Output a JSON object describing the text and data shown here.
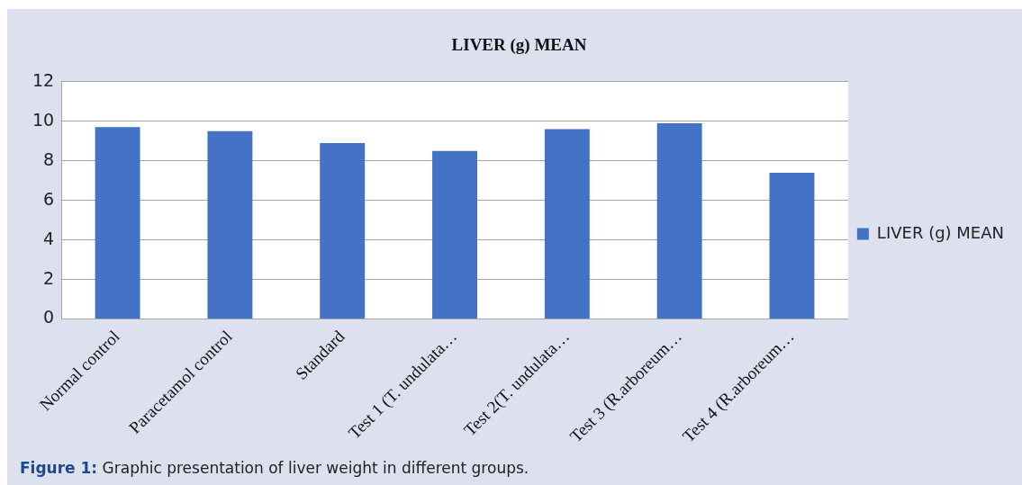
{
  "chart_data": {
    "type": "bar",
    "title": "LIVER (g) MEAN",
    "categories": [
      "Normal control",
      "Paracetamol control",
      "Standard",
      "Test 1 (T. undulata…",
      "Test 2(T. undulata…",
      "Test 3 (R.arboreum…",
      "Test 4 (R.arboreum…"
    ],
    "series": [
      {
        "name": "LIVER (g) MEAN",
        "color": "#4472c4",
        "values": [
          9.7,
          9.5,
          8.9,
          8.5,
          9.6,
          9.9,
          7.4
        ]
      }
    ],
    "ylim": [
      0,
      12
    ],
    "yticks": [
      0,
      2,
      4,
      6,
      8,
      10,
      12
    ],
    "grid": "y",
    "legend": "right",
    "annotations": [
      "Figure 1: Graphic presentation of liver weight in different groups."
    ]
  }
}
